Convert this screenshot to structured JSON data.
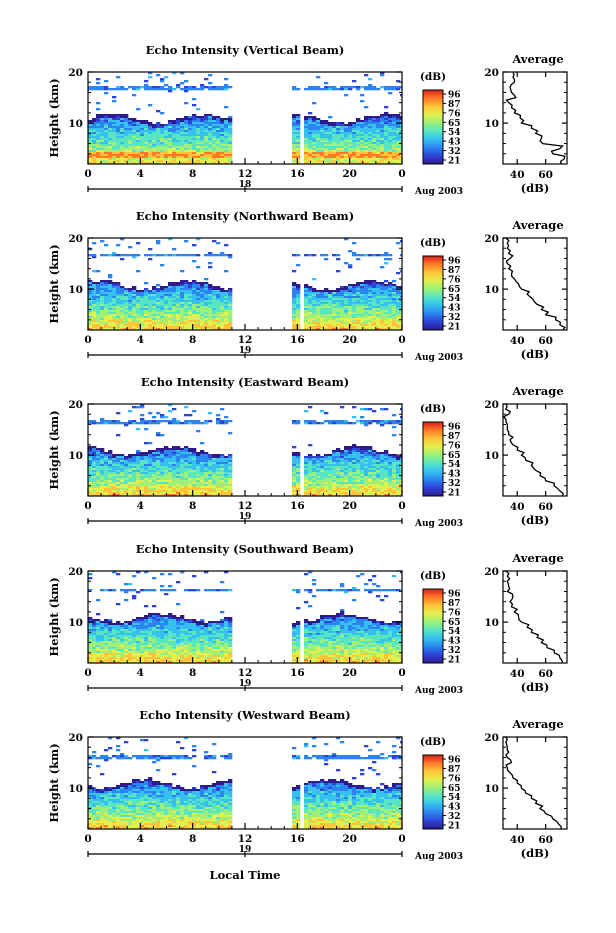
{
  "figure": {
    "xlabel": "Local Time",
    "date_label": "Aug 2003",
    "day_labels": [
      "18",
      "19"
    ],
    "x_ticks": [
      "0",
      "4",
      "8",
      "12",
      "16",
      "20",
      "0"
    ],
    "y_label": "Height (km)",
    "y_ticks": [
      "20",
      "10"
    ],
    "colorbar_unit": "(dB)",
    "colorbar_ticks": [
      "96",
      "87",
      "76",
      "65",
      "54",
      "43",
      "32",
      "21"
    ],
    "avg_title": "Average",
    "avg_unit": "(dB)",
    "avg_x_ticks": [
      "40",
      "60"
    ],
    "colorscale": [
      "#2d1b8c",
      "#2c44d8",
      "#2c85ee",
      "#35c0f0",
      "#58e6c2",
      "#9ef07a",
      "#e2f04e",
      "#ffc43a",
      "#ff7a26",
      "#d62020"
    ]
  },
  "chart_data": [
    {
      "type": "heatmap",
      "title": "Echo Intensity (Vertical Beam)",
      "x": "local time (h)",
      "xlim": [
        0,
        24
      ],
      "ylim": [
        2,
        20
      ],
      "gaps_h": [
        [
          11,
          15.4
        ],
        [
          16.1,
          16.5
        ]
      ],
      "colorbar_range_db": [
        21,
        96
      ],
      "average_profile": {
        "title": "Average",
        "xlabel": "(dB)",
        "xlim": [
          30,
          75
        ],
        "height_km": [
          2,
          3,
          4,
          5,
          6,
          7,
          8,
          9,
          10,
          11,
          12,
          13,
          14,
          15,
          16,
          17,
          18,
          19,
          20
        ],
        "db": [
          71,
          73,
          65,
          70,
          58,
          57,
          53,
          50,
          43,
          42,
          38,
          36,
          34,
          39,
          36,
          35,
          38,
          37,
          37
        ]
      }
    },
    {
      "type": "heatmap",
      "title": "Echo Intensity (Northward Beam)",
      "x": "local time (h)",
      "xlim": [
        0,
        24
      ],
      "ylim": [
        2,
        20
      ],
      "gaps_h": [
        [
          11,
          15.4
        ],
        [
          16.1,
          16.5
        ]
      ],
      "colorbar_range_db": [
        21,
        96
      ],
      "average_profile": {
        "title": "Average",
        "xlabel": "(dB)",
        "xlim": [
          30,
          75
        ],
        "height_km": [
          2,
          3,
          4,
          5,
          6,
          7,
          8,
          9,
          10,
          11,
          12,
          13,
          14,
          15,
          16,
          17,
          18,
          19,
          20
        ],
        "db": [
          72,
          70,
          67,
          60,
          57,
          54,
          51,
          47,
          43,
          41,
          38,
          36,
          34,
          33,
          35,
          34,
          33,
          33,
          32
        ]
      }
    },
    {
      "type": "heatmap",
      "title": "Echo Intensity (Eastward Beam)",
      "x": "local time (h)",
      "xlim": [
        0,
        24
      ],
      "ylim": [
        2,
        20
      ],
      "gaps_h": [
        [
          11,
          15.4
        ],
        [
          16.1,
          16.5
        ]
      ],
      "colorbar_range_db": [
        21,
        96
      ],
      "average_profile": {
        "title": "Average",
        "xlabel": "(dB)",
        "xlim": [
          30,
          75
        ],
        "height_km": [
          2,
          3,
          4,
          5,
          6,
          7,
          8,
          9,
          10,
          11,
          12,
          13,
          14,
          15,
          16,
          17,
          18,
          19,
          20
        ],
        "db": [
          72,
          70,
          66,
          60,
          56,
          53,
          50,
          46,
          43,
          40,
          37,
          35,
          34,
          33,
          33,
          32,
          34,
          32,
          32
        ]
      }
    },
    {
      "type": "heatmap",
      "title": "Echo Intensity (Southward Beam)",
      "x": "local time (h)",
      "xlim": [
        0,
        24
      ],
      "ylim": [
        2,
        20
      ],
      "gaps_h": [
        [
          11,
          15.4
        ],
        [
          16.1,
          16.5
        ]
      ],
      "colorbar_range_db": [
        21,
        96
      ],
      "average_profile": {
        "title": "Average",
        "xlabel": "(dB)",
        "xlim": [
          30,
          75
        ],
        "height_km": [
          2,
          3,
          4,
          5,
          6,
          7,
          8,
          9,
          10,
          11,
          12,
          13,
          14,
          15,
          16,
          17,
          18,
          19,
          20
        ],
        "db": [
          72,
          70,
          66,
          61,
          57,
          54,
          50,
          47,
          43,
          41,
          38,
          36,
          35,
          37,
          33,
          34,
          33,
          33,
          32
        ]
      }
    },
    {
      "type": "heatmap",
      "title": "Echo Intensity (Westward Beam)",
      "x": "local time (h)",
      "xlim": [
        0,
        24
      ],
      "ylim": [
        2,
        20
      ],
      "gaps_h": [
        [
          11,
          15.4
        ],
        [
          16.1,
          16.5
        ]
      ],
      "colorbar_range_db": [
        21,
        96
      ],
      "average_profile": {
        "title": "Average",
        "xlabel": "(dB)",
        "xlim": [
          30,
          75
        ],
        "height_km": [
          2,
          3,
          4,
          5,
          6,
          7,
          8,
          9,
          10,
          11,
          12,
          13,
          14,
          15,
          16,
          17,
          18,
          19,
          20
        ],
        "db": [
          71,
          69,
          65,
          60,
          56,
          53,
          50,
          46,
          43,
          40,
          37,
          35,
          33,
          36,
          33,
          34,
          33,
          32,
          32
        ]
      }
    }
  ]
}
